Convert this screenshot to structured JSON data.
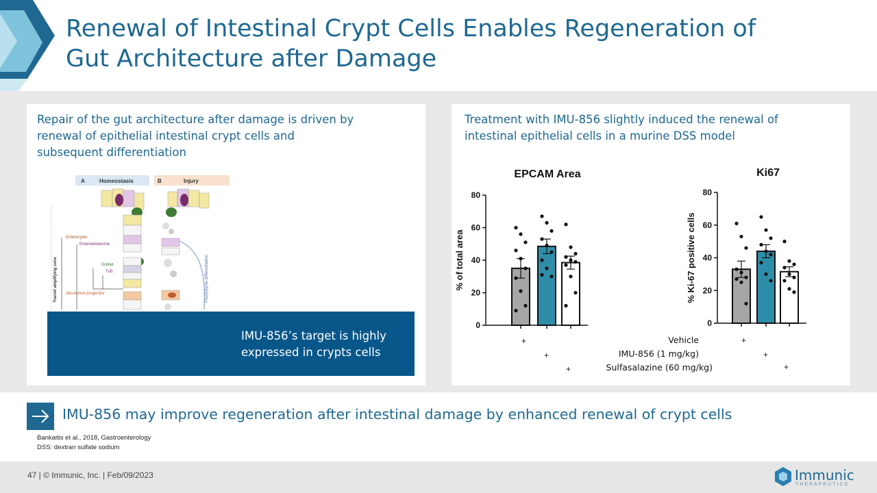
{
  "slide": {
    "title": "Renewal of Intestinal Crypt Cells Enables Regeneration of Gut Architecture after Damage",
    "left_panel": {
      "text": "Repair of the gut architecture after damage is driven by renewal of epithelial intestinal crypt cells and subsequent differentiation",
      "figure_labels": {
        "panel_a": "A",
        "panel_a_title": "Homeostasis",
        "panel_b": "B",
        "panel_b_title": "Injury",
        "zone": "Transit amplifying zone",
        "enterocytes": "Enterocytes",
        "enteroendocrine": "Enteroendocrine",
        "goblet": "Goblet",
        "tuft": "Tuft",
        "absorptive": "Absorptive progenitor",
        "plasticity": "Plasticity/de-differentiation"
      },
      "callout": "IMU-856’s target is highly expressed in crypts cells"
    },
    "right_panel": {
      "text": "Treatment with IMU-856 slightly induced the renewal of intestinal epithelial cells in a murine DSS model"
    },
    "treatment_labels": {
      "vehicle": "Vehicle",
      "imu": "IMU-856 (1 mg/kg)",
      "sulfa": "Sulfasalazine (60 mg/kg)",
      "plus": "+"
    },
    "conclusion": "IMU-856 may improve regeneration after intestinal damage by enhanced renewal of crypt cells",
    "references": [
      "Bankaitis et al., 2018, Gastroenterology",
      "DSS: dextran sulfate sodium"
    ],
    "footer": "47 | © Immunic, Inc. | Feb/09/2023",
    "logo": {
      "name": "Immunic",
      "sub": "THERAPEUTICS"
    }
  },
  "colors": {
    "brand": "#1e6891",
    "callout": "#09578a",
    "vehicle": "#a6a6a6",
    "imu": "#2e8ea9",
    "sulfa": "#ffffff"
  },
  "icons": {
    "conclusion": "arrow-right-icon",
    "logo": "immunic-logo-icon"
  },
  "chart_data": [
    {
      "type": "bar",
      "title": "EPCAM Area",
      "ylabel": "% of total area",
      "ylim": [
        0,
        80
      ],
      "yticks": [
        0,
        20,
        40,
        60,
        80
      ],
      "categories": [
        "Vehicle",
        "IMU-856 (1 mg/kg)",
        "Sulfasalazine (60 mg/kg)"
      ],
      "values": [
        35,
        48.5,
        38.5
      ],
      "errors": [
        6,
        4.5,
        4
      ],
      "points": [
        [
          60,
          56,
          51,
          46,
          41,
          35,
          29,
          21,
          12,
          9
        ],
        [
          67,
          63,
          58,
          53,
          49,
          45,
          40,
          35,
          30,
          31
        ],
        [
          62,
          48,
          44,
          42,
          40,
          39,
          37,
          30,
          20,
          12
        ]
      ]
    },
    {
      "type": "bar",
      "title": "Ki67",
      "ylabel": "% Ki-67 positive cells",
      "ylim": [
        0,
        80
      ],
      "yticks": [
        0,
        20,
        40,
        60,
        80
      ],
      "categories": [
        "Vehicle",
        "IMU-856 (1 mg/kg)",
        "Sulfasalazine (60 mg/kg)"
      ],
      "values": [
        33,
        44,
        31.5
      ],
      "errors": [
        5,
        4,
        3
      ],
      "points": [
        [
          61,
          53,
          46,
          33,
          31,
          28,
          27,
          25,
          12
        ],
        [
          65,
          57,
          52,
          48,
          44,
          42,
          37,
          30,
          26
        ],
        [
          50,
          38,
          36,
          34,
          30,
          28,
          26,
          21,
          19
        ]
      ]
    }
  ]
}
